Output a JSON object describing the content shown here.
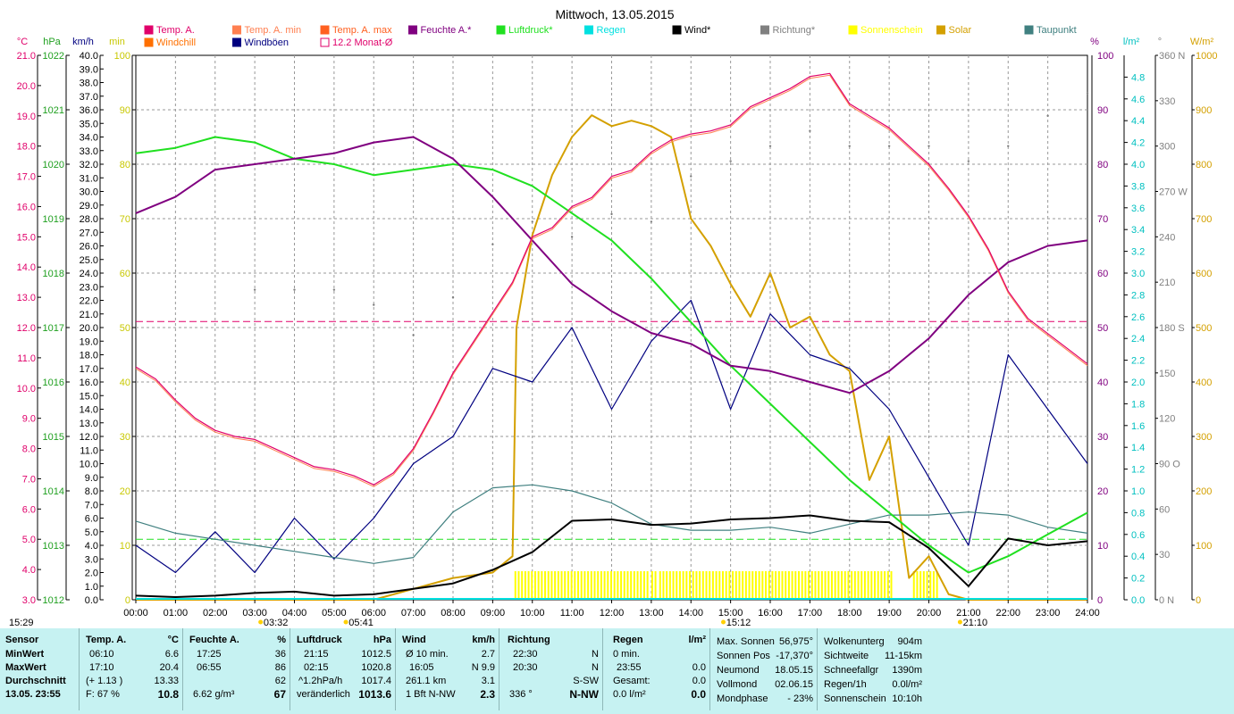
{
  "title": "Mittwoch, 13.05.2015",
  "legend": [
    {
      "label": "Temp. A.",
      "color": "#e0006a",
      "row": 0,
      "col": 0
    },
    {
      "label": "Temp. A. min",
      "color": "#ff7f50",
      "row": 0,
      "col": 1
    },
    {
      "label": "Temp. A. max",
      "color": "#ff6020",
      "row": 0,
      "col": 2
    },
    {
      "label": "Feuchte A.*",
      "color": "#800080",
      "row": 0,
      "col": 3
    },
    {
      "label": "Luftdruck*",
      "color": "#20e020",
      "row": 0,
      "col": 4
    },
    {
      "label": "Regen",
      "color": "#00e0e0",
      "row": 0,
      "col": 5
    },
    {
      "label": "Wind*",
      "color": "#000000",
      "row": 0,
      "col": 6
    },
    {
      "label": "Richtung*",
      "color": "#808080",
      "row": 0,
      "col": 7
    },
    {
      "label": "Sonnenschein",
      "color": "#ffff00",
      "row": 0,
      "col": 8
    },
    {
      "label": "Solar",
      "color": "#d4a000",
      "row": 0,
      "col": 9
    },
    {
      "label": "Taupunkt",
      "color": "#408080",
      "row": 0,
      "col": 10
    },
    {
      "label": "Windchill",
      "color": "#ff7000",
      "row": 1,
      "col": 0
    },
    {
      "label": "Windböen",
      "color": "#000080",
      "row": 1,
      "col": 1
    },
    {
      "label": "12.2 Monat-Ø",
      "color": "#e0006a",
      "row": 1,
      "col": 2,
      "hollow": true
    }
  ],
  "axis_units": {
    "temp": "°C",
    "hpa": "hPa",
    "kmh": "km/h",
    "min": "min",
    "pct": "%",
    "rain": "l/m²",
    "deg": "°",
    "solar": "W/m²"
  },
  "chart_data": {
    "type": "line",
    "x_label_ticks": [
      "00:00",
      "01:00",
      "02:00",
      "03:00",
      "04:00",
      "05:00",
      "06:00",
      "07:00",
      "08:00",
      "09:00",
      "10:00",
      "11:00",
      "12:00",
      "13:00",
      "14:00",
      "15:00",
      "16:00",
      "17:00",
      "18:00",
      "19:00",
      "20:00",
      "21:00",
      "22:00",
      "23:00",
      "24:00"
    ],
    "xlim": [
      0,
      24
    ],
    "temp_axis": {
      "range": [
        3.0,
        21.0
      ],
      "ticks": [
        "3.0",
        "4.0",
        "5.0",
        "6.0",
        "7.0",
        "8.0",
        "9.0",
        "10.0",
        "11.0",
        "12.0",
        "13.0",
        "14.0",
        "15.0",
        "16.0",
        "17.0",
        "18.0",
        "19.0",
        "20.0",
        "21.0"
      ]
    },
    "pressure_axis": {
      "range": [
        1012,
        1022
      ],
      "ticks": [
        "1012",
        "1013",
        "1014",
        "1015",
        "1016",
        "1017",
        "1018",
        "1019",
        "1020",
        "1021",
        "1022"
      ]
    },
    "wind_axis": {
      "range": [
        0,
        40
      ],
      "ticks": [
        "0.0",
        "1.0",
        "2.0",
        "3.0",
        "4.0",
        "5.0",
        "6.0",
        "7.0",
        "8.0",
        "9.0",
        "10.0",
        "11.0",
        "12.0",
        "13.0",
        "14.0",
        "15.0",
        "16.0",
        "17.0",
        "18.0",
        "19.0",
        "20.0",
        "21.0",
        "22.0",
        "23.0",
        "24.0",
        "25.0",
        "26.0",
        "27.0",
        "28.0",
        "29.0",
        "30.0",
        "31.0",
        "32.0",
        "33.0",
        "34.0",
        "35.0",
        "36.0",
        "37.0",
        "38.0",
        "39.0",
        "40.0"
      ]
    },
    "sun_axis": {
      "range": [
        0,
        100
      ],
      "ticks": [
        "0",
        "10",
        "20",
        "30",
        "40",
        "50",
        "60",
        "70",
        "80",
        "90",
        "100"
      ]
    },
    "humidity_axis": {
      "range": [
        0,
        100
      ],
      "ticks": [
        "0",
        "10",
        "20",
        "30",
        "40",
        "50",
        "60",
        "70",
        "80",
        "90",
        "100"
      ]
    },
    "rain_axis": {
      "range": [
        0,
        5
      ],
      "ticks": [
        "0.0",
        "0.2",
        "0.4",
        "0.6",
        "0.8",
        "1.0",
        "1.2",
        "1.4",
        "1.6",
        "1.8",
        "2.0",
        "2.2",
        "2.4",
        "2.6",
        "2.8",
        "3.0",
        "3.2",
        "3.4",
        "3.6",
        "3.8",
        "4.0",
        "4.2",
        "4.4",
        "4.6",
        "4.8"
      ]
    },
    "direction_axis": {
      "range": [
        0,
        360
      ],
      "ticks": [
        "0 N",
        "30",
        "60",
        "90 O",
        "120",
        "150",
        "180 S",
        "210",
        "240",
        "270 W",
        "300",
        "330",
        "360 N"
      ]
    },
    "solar_axis": {
      "range": [
        0,
        1000
      ],
      "ticks": [
        "0",
        "100",
        "200",
        "300",
        "400",
        "500",
        "600",
        "700",
        "800",
        "900",
        "1000"
      ]
    },
    "series": [
      {
        "name": "Temp. A.",
        "unit": "°C",
        "color": "#e0006a",
        "x": [
          0,
          0.5,
          1,
          1.5,
          2,
          2.5,
          3,
          3.5,
          4,
          4.5,
          5,
          5.5,
          6,
          6.5,
          7,
          7.5,
          8,
          8.5,
          9,
          9.5,
          10,
          10.5,
          11,
          11.5,
          12,
          12.5,
          13,
          13.5,
          14,
          14.5,
          15,
          15.5,
          16,
          16.5,
          17,
          17.5,
          18,
          18.5,
          19,
          19.5,
          20,
          20.5,
          21,
          21.5,
          22,
          22.5,
          23,
          23.5,
          24
        ],
        "values": [
          10.7,
          10.3,
          9.6,
          9.0,
          8.6,
          8.4,
          8.3,
          8.0,
          7.7,
          7.4,
          7.3,
          7.1,
          6.8,
          7.2,
          8.0,
          9.2,
          10.5,
          11.5,
          12.5,
          13.5,
          15.0,
          15.3,
          16.0,
          16.3,
          17.0,
          17.2,
          17.8,
          18.2,
          18.4,
          18.5,
          18.7,
          19.3,
          19.6,
          19.9,
          20.3,
          20.4,
          19.4,
          19.0,
          18.6,
          18.0,
          17.4,
          16.6,
          15.7,
          14.6,
          13.2,
          12.3,
          11.8,
          11.3,
          10.8
        ]
      },
      {
        "name": "Luftdruck*",
        "unit": "hPa",
        "color": "#20e020",
        "x": [
          0,
          1,
          2,
          3,
          4,
          5,
          6,
          7,
          8,
          9,
          10,
          11,
          12,
          13,
          14,
          15,
          16,
          17,
          18,
          19,
          20,
          21,
          22,
          23,
          24
        ],
        "values": [
          1020.2,
          1020.3,
          1020.5,
          1020.4,
          1020.1,
          1020.0,
          1019.8,
          1019.9,
          1020.0,
          1019.9,
          1019.6,
          1019.1,
          1018.6,
          1017.9,
          1017.1,
          1016.3,
          1015.6,
          1014.9,
          1014.2,
          1013.6,
          1013.0,
          1012.5,
          1012.8,
          1013.2,
          1013.6
        ]
      },
      {
        "name": "Feuchte A.*",
        "unit": "%",
        "color": "#800080",
        "x": [
          0,
          1,
          2,
          3,
          4,
          5,
          6,
          7,
          8,
          9,
          10,
          11,
          12,
          13,
          14,
          15,
          16,
          17,
          18,
          19,
          20,
          21,
          22,
          23,
          24
        ],
        "values": [
          71,
          74,
          79,
          80,
          81,
          82,
          84,
          85,
          81,
          74,
          66,
          58,
          53,
          49,
          47,
          43,
          42,
          40,
          38,
          42,
          48,
          56,
          62,
          65,
          66
        ]
      },
      {
        "name": "Taupunkt",
        "unit": "°C",
        "color": "#408080",
        "x": [
          0,
          1,
          2,
          3,
          4,
          5,
          6,
          7,
          8,
          9,
          10,
          11,
          12,
          13,
          14,
          15,
          16,
          17,
          18,
          19,
          20,
          21,
          22,
          23,
          24
        ],
        "values": [
          5.6,
          5.2,
          5.0,
          4.8,
          4.6,
          4.4,
          4.2,
          4.4,
          5.9,
          6.7,
          6.8,
          6.6,
          6.2,
          5.5,
          5.3,
          5.3,
          5.4,
          5.2,
          5.5,
          5.8,
          5.8,
          5.9,
          5.8,
          5.4,
          5.2
        ]
      },
      {
        "name": "Wind*",
        "unit": "km/h",
        "color": "#000000",
        "x": [
          0,
          1,
          2,
          3,
          4,
          5,
          6,
          7,
          8,
          9,
          10,
          11,
          12,
          13,
          14,
          15,
          16,
          17,
          18,
          19,
          20,
          21,
          22,
          23,
          24
        ],
        "values": [
          0.3,
          0.2,
          0.3,
          0.5,
          0.6,
          0.3,
          0.4,
          0.8,
          1.2,
          2.2,
          3.5,
          5.8,
          5.9,
          5.5,
          5.6,
          5.9,
          6.0,
          6.2,
          5.8,
          5.7,
          3.8,
          1.0,
          4.5,
          4.0,
          4.3
        ]
      },
      {
        "name": "Windböen",
        "unit": "km/h",
        "color": "#000080",
        "x": [
          0,
          1,
          2,
          3,
          4,
          5,
          6,
          7,
          8,
          9,
          10,
          11,
          12,
          13,
          14,
          15,
          16,
          17,
          18,
          19,
          20,
          21,
          22,
          23,
          24
        ],
        "values": [
          4.0,
          2.0,
          5.0,
          2.0,
          6.0,
          3.0,
          6.0,
          10.0,
          12.0,
          17.0,
          16.0,
          20.0,
          14.0,
          19.0,
          22.0,
          14.0,
          21.0,
          18.0,
          17.0,
          14.0,
          9.0,
          4.0,
          18.0,
          14.0,
          10.0
        ]
      },
      {
        "name": "Solar",
        "unit": "W/m²",
        "color": "#d4a000",
        "x": [
          0,
          6,
          7,
          8,
          9,
          9.5,
          9.6,
          10,
          10.5,
          11,
          11.5,
          12,
          12.5,
          13,
          13.5,
          14,
          14.5,
          15,
          15.5,
          16,
          16.5,
          17,
          17.5,
          18,
          18.5,
          19,
          19.5,
          20,
          20.5,
          21,
          24
        ],
        "values": [
          0,
          0,
          20,
          40,
          50,
          80,
          500,
          670,
          780,
          850,
          890,
          870,
          880,
          870,
          850,
          700,
          650,
          580,
          520,
          600,
          500,
          520,
          450,
          420,
          220,
          300,
          40,
          80,
          10,
          0,
          0
        ]
      },
      {
        "name": "Richtung*",
        "unit": "°",
        "color": "#808080",
        "x": [
          3,
          4,
          5,
          6,
          7,
          8,
          9,
          10,
          11,
          12,
          13,
          14,
          15,
          16,
          17,
          18,
          19,
          20,
          21,
          22,
          23,
          24
        ],
        "values": [
          205,
          205,
          205,
          195,
          175,
          200,
          235,
          250,
          240,
          255,
          250,
          280,
          290,
          300,
          310,
          300,
          300,
          300,
          290,
          300,
          320,
          335
        ]
      }
    ],
    "reference_lines": [
      {
        "name": "12.2 Monat-Ø",
        "axis": "temp",
        "value": 12.2
      },
      {
        "name": "Taupunkt Ø",
        "axis": "temp",
        "value": 5.0
      }
    ],
    "sunshine_intervals": [
      [
        9.55,
        12.9
      ],
      [
        13.0,
        13.15
      ],
      [
        13.2,
        19.05
      ],
      [
        19.6,
        20.2
      ]
    ],
    "x_annotations": [
      {
        "label": "03:32",
        "x": 3.53
      },
      {
        "label": "05:41",
        "x": 5.68
      },
      {
        "label": "15:12",
        "x": 15.2
      },
      {
        "label": "21:10",
        "x": 21.17
      }
    ],
    "left_corner_label": "15:29"
  },
  "stats": {
    "sensor": {
      "header": "Sensor",
      "rows": [
        "MinWert",
        "MaxWert",
        "Durchschnitt",
        "13.05. 23:55"
      ]
    },
    "temp": {
      "header": "Temp. A.",
      "unit": "°C",
      "rows": [
        [
          "06:10",
          "6.6"
        ],
        [
          "17:10",
          "20.4"
        ],
        [
          "(+ 1.13 )",
          "13.33"
        ],
        [
          "F: 67 %",
          "10.8"
        ]
      ]
    },
    "feuchte": {
      "header": "Feuchte A.",
      "unit": "%",
      "rows": [
        [
          "17:25",
          "36"
        ],
        [
          "06:55",
          "86"
        ],
        [
          "",
          "62"
        ],
        [
          "6.62 g/m³",
          "67"
        ]
      ]
    },
    "luftdruck": {
      "header": "Luftdruck",
      "unit": "hPa",
      "rows": [
        [
          "21:15",
          "1012.5"
        ],
        [
          "02:15",
          "1020.8"
        ],
        [
          "^1.2hPa/h",
          "1017.4"
        ],
        [
          "veränderlich",
          "1013.6"
        ]
      ]
    },
    "wind": {
      "header": "Wind",
      "unit": "km/h",
      "rows": [
        [
          "Ø 10 min.",
          "2.7"
        ],
        [
          "16:05",
          "N 9.9"
        ],
        [
          "261.1 km",
          "3.1"
        ],
        [
          "1 Bft N-NW",
          "2.3"
        ]
      ]
    },
    "richtung": {
      "header": "Richtung",
      "rows": [
        [
          "22:30",
          "N"
        ],
        [
          "20:30",
          "N"
        ],
        [
          "",
          "S-SW"
        ],
        [
          "336 °",
          "N-NW"
        ]
      ]
    },
    "regen": {
      "header": "Regen",
      "unit": "l/m²",
      "rows": [
        [
          "0 min.",
          ""
        ],
        [
          "23:55",
          "0.0"
        ],
        [
          "Gesamt:",
          "0.0"
        ],
        [
          "0.0 l/m²",
          "0.0"
        ]
      ]
    },
    "astro": {
      "rows": [
        [
          "Max. Sonnen",
          "56,975°"
        ],
        [
          "Sonnen Pos",
          "-17,370°"
        ],
        [
          "Neumond",
          "18.05.15"
        ],
        [
          "Vollmond",
          "02.06.15"
        ],
        [
          "Mondphase",
          "- 23%"
        ]
      ]
    },
    "misc": {
      "rows": [
        [
          "Wolkenunterg",
          "904m"
        ],
        [
          "Sichtweite",
          "11-15km"
        ],
        [
          "Schneefallgr",
          "1390m"
        ],
        [
          "Regen/1h",
          "0.0l/m²"
        ],
        [
          "Sonnenschein",
          "10:10h"
        ]
      ]
    }
  }
}
